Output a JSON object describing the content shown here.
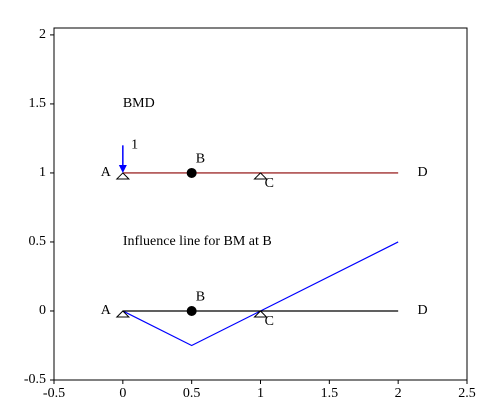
{
  "chart_data": {
    "type": "line",
    "xlim": [
      -0.5,
      2.5
    ],
    "ylim": [
      -0.5,
      2.05
    ],
    "xticks": [
      -0.5,
      0,
      0.5,
      1,
      1.5,
      2,
      2.5
    ],
    "yticks": [
      -0.5,
      0,
      0.5,
      1,
      1.5,
      2
    ],
    "series": [
      {
        "color": "#8b0000",
        "x": [
          0,
          2
        ],
        "values": [
          1,
          1
        ]
      },
      {
        "color": "#0000ff",
        "x": [
          0,
          0.5,
          1,
          2
        ],
        "values": [
          0,
          -0.25,
          0,
          0.5
        ]
      },
      {
        "color": "#000000",
        "x": [
          0,
          2
        ],
        "values": [
          0,
          0
        ]
      }
    ],
    "supports": {
      "x": [
        0,
        1,
        0,
        1
      ],
      "values": [
        1,
        1,
        0,
        0
      ]
    },
    "pins": {
      "x": [
        0.5,
        0.5
      ],
      "values": [
        1,
        0
      ]
    },
    "arrow": {
      "color": "#0000ff",
      "x": 0,
      "from": 1.2,
      "to": 1
    },
    "annotations": [
      {
        "text": "BMD",
        "x": 0,
        "y": 1.5
      },
      {
        "text": "Influence line for BM at B",
        "x": 0,
        "y": 0.5
      },
      {
        "text": "1",
        "x": 0.06,
        "y": 1.2
      },
      {
        "text": "A",
        "x": -0.16,
        "y": 1
      },
      {
        "text": "B",
        "x": 0.53,
        "y": 1.1
      },
      {
        "text": "C",
        "x": 1.03,
        "y": 0.92
      },
      {
        "text": "D",
        "x": 2.14,
        "y": 1
      },
      {
        "text": "A",
        "x": -0.16,
        "y": 0
      },
      {
        "text": "B",
        "x": 0.53,
        "y": 0.1
      },
      {
        "text": "C",
        "x": 1.03,
        "y": -0.08
      },
      {
        "text": "D",
        "x": 2.14,
        "y": 0
      }
    ]
  }
}
